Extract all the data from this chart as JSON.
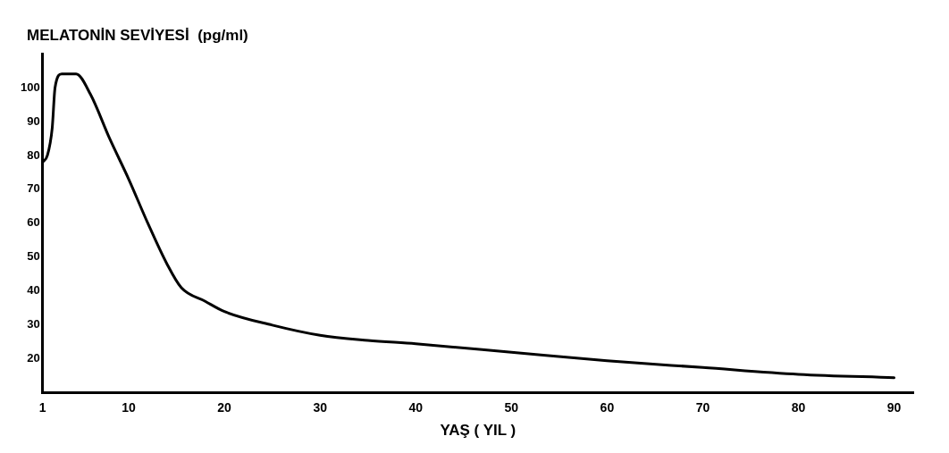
{
  "chart_data": {
    "type": "line",
    "ylabel": "MELATONİN SEVİYESİ  (pg/ml)",
    "xlabel": "YAŞ ( YIL )",
    "x": [
      1,
      1.5,
      2,
      2.3,
      3,
      4.5,
      6,
      8,
      10,
      12,
      14,
      15.5,
      18,
      20,
      25,
      30,
      35,
      40,
      50,
      60,
      70,
      80,
      90
    ],
    "series": [
      {
        "color": "#000000",
        "values": [
          78,
          80,
          88,
          100,
          104,
          104,
          98,
          85,
          73,
          60,
          48,
          41,
          37,
          34,
          30,
          27,
          25.5,
          24.5,
          22,
          19.5,
          17.5,
          15.5,
          14.5
        ]
      }
    ],
    "xlim": [
      1,
      92
    ],
    "xticks": [
      1,
      10,
      20,
      30,
      40,
      50,
      60,
      70,
      80,
      90
    ],
    "ylim": [
      10,
      110
    ],
    "yticks": [
      20,
      30,
      40,
      50,
      60,
      70,
      80,
      90,
      100
    ],
    "grid": false,
    "legend": false,
    "marker": "none",
    "line_style": "solid"
  }
}
